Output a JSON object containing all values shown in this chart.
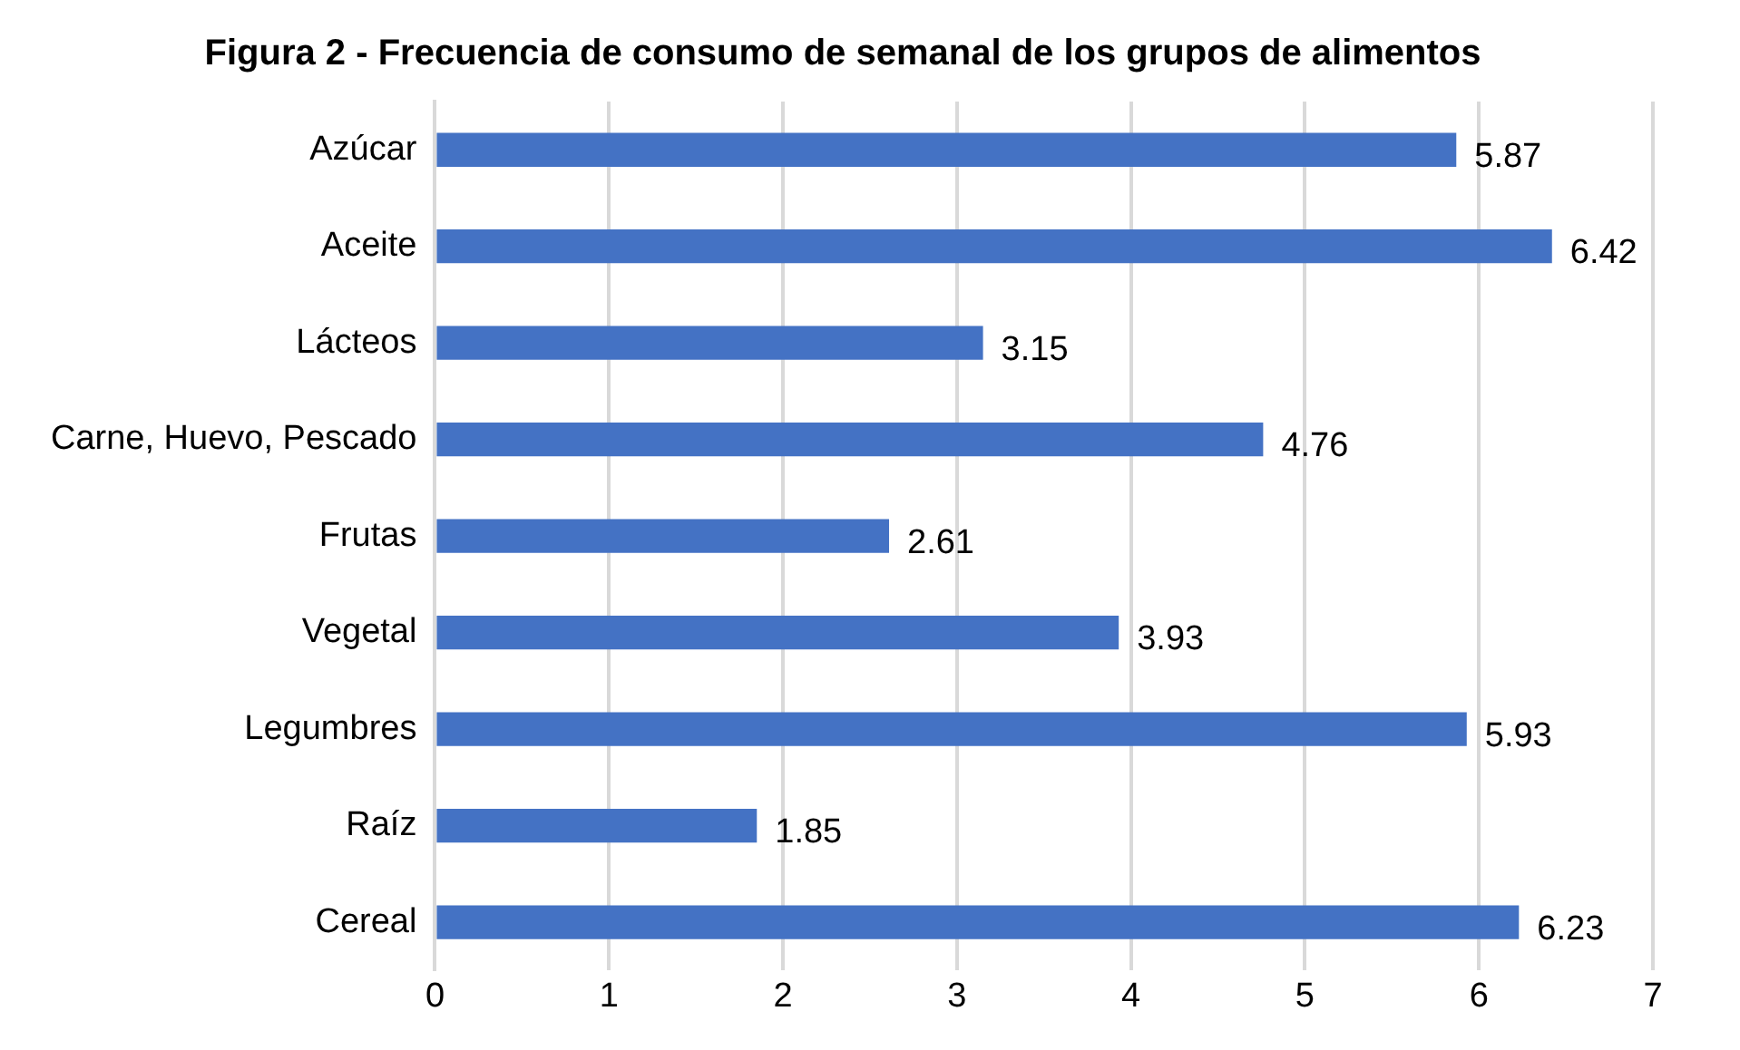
{
  "chart_data": {
    "type": "bar",
    "orientation": "horizontal",
    "title": "Figura 2 - Frecuencia de consumo de semanal de los grupos de alimentos",
    "categories": [
      "Azúcar",
      "Aceite",
      "Lácteos",
      "Carne, Huevo, Pescado",
      "Frutas",
      "Vegetal",
      "Legumbres",
      "Raíz",
      "Cereal"
    ],
    "values": [
      5.87,
      6.42,
      3.15,
      4.76,
      2.61,
      3.93,
      5.93,
      1.85,
      6.23
    ],
    "color": "#4472c4",
    "xlim": [
      0,
      7
    ],
    "xticks": [
      0,
      1,
      2,
      3,
      4,
      5,
      6,
      7
    ],
    "grid": "x",
    "data_labels": true,
    "legend": false
  }
}
